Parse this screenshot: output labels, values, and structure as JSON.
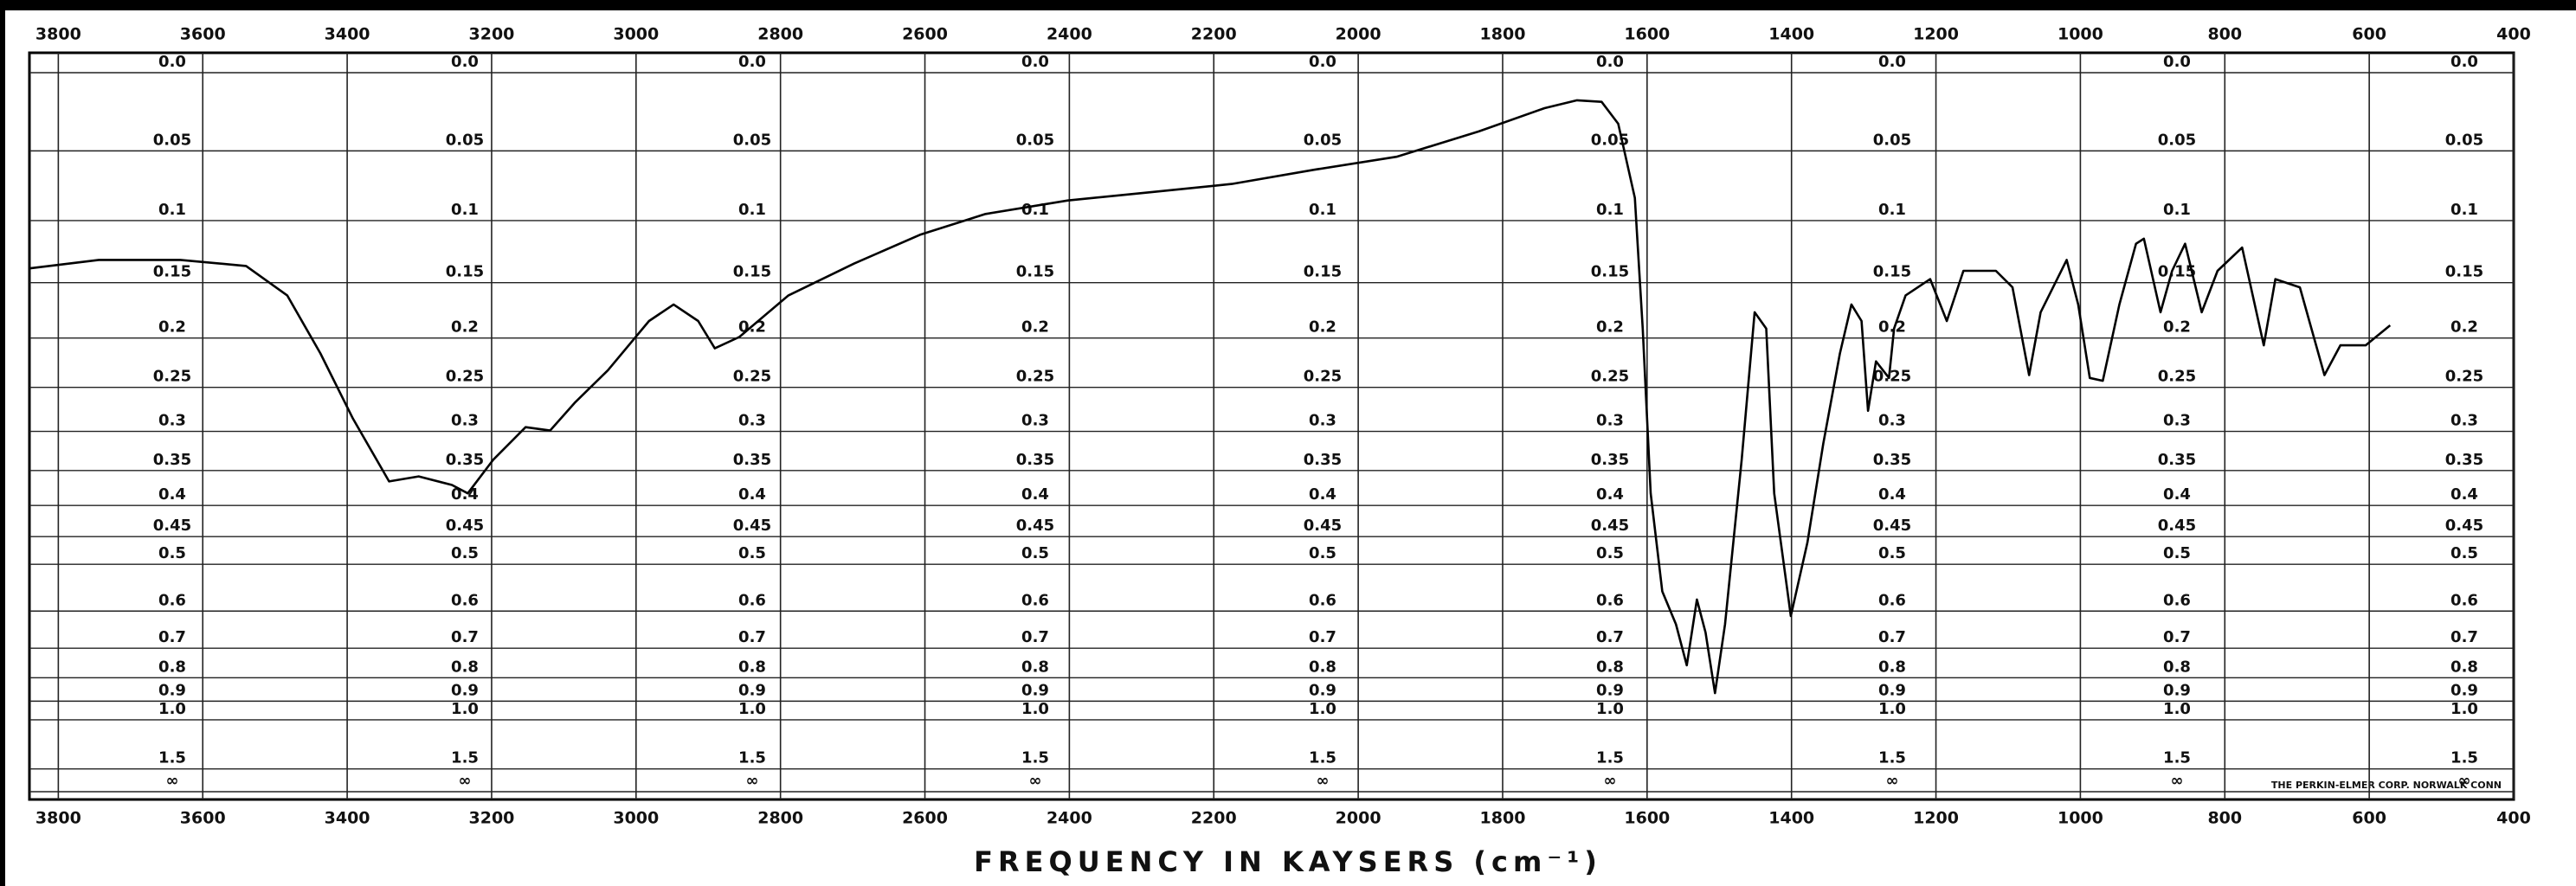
{
  "chart_data": {
    "type": "line",
    "xlabel": "FREQUENCY IN KAYSERS (cm⁻¹)",
    "annotation": "THE PERKIN-ELMER CORP. NORWALK CONN",
    "yscale": "absorbance",
    "grid": true,
    "color": "#000000",
    "xlim": [
      3840,
      400
    ],
    "xticks": [
      3800,
      3600,
      3400,
      3200,
      3000,
      2800,
      2600,
      2400,
      2200,
      2000,
      1800,
      1600,
      1400,
      1200,
      1000,
      800,
      600,
      400
    ],
    "ylim": [
      0,
      null
    ],
    "yticks": [
      {
        "value": 0,
        "label": "0.0"
      },
      0.05,
      0.1,
      0.15,
      0.2,
      0.25,
      0.3,
      0.35,
      0.4,
      0.45,
      0.5,
      0.6,
      0.7,
      0.8,
      0.9,
      {
        "value": 1,
        "label": "1.0"
      },
      1.5,
      {
        "value": null,
        "label": "∞"
      }
    ],
    "x": [
      3840,
      3744,
      3631,
      3540,
      3483,
      3437,
      3392,
      3342,
      3301,
      3255,
      3233,
      3198,
      3153,
      3119,
      3085,
      3039,
      2982,
      2948,
      2914,
      2891,
      2857,
      2789,
      2698,
      2607,
      2516,
      2402,
      2288,
      2175,
      2061,
      1947,
      1833,
      1742,
      1697,
      1663,
      1640,
      1617,
      1606,
      1595,
      1579,
      1560,
      1545,
      1531,
      1519,
      1506,
      1492,
      1469,
      1451,
      1435,
      1424,
      1401,
      1378,
      1356,
      1333,
      1317,
      1303,
      1294,
      1283,
      1265,
      1258,
      1242,
      1208,
      1185,
      1162,
      1117,
      1094,
      1071,
      1055,
      1019,
      1003,
      987,
      969,
      946,
      923,
      912,
      889,
      873,
      855,
      832,
      810,
      776,
      746,
      730,
      696,
      662,
      640,
      605,
      571
    ],
    "values": [
      0.138,
      0.131,
      0.131,
      0.136,
      0.161,
      0.215,
      0.285,
      0.365,
      0.358,
      0.37,
      0.382,
      0.336,
      0.295,
      0.299,
      0.267,
      0.232,
      0.184,
      0.169,
      0.184,
      0.21,
      0.199,
      0.161,
      0.134,
      0.111,
      0.095,
      0.085,
      0.079,
      0.073,
      0.063,
      0.054,
      0.037,
      0.022,
      0.017,
      0.018,
      0.032,
      0.083,
      0.191,
      0.382,
      0.555,
      0.633,
      0.755,
      0.573,
      0.655,
      0.863,
      0.633,
      0.336,
      0.176,
      0.191,
      0.382,
      0.612,
      0.46,
      0.315,
      0.215,
      0.169,
      0.184,
      0.276,
      0.223,
      0.24,
      0.191,
      0.161,
      0.147,
      0.184,
      0.14,
      0.14,
      0.154,
      0.237,
      0.176,
      0.131,
      0.169,
      0.24,
      0.243,
      0.169,
      0.118,
      0.114,
      0.176,
      0.14,
      0.118,
      0.176,
      0.14,
      0.121,
      0.207,
      0.147,
      0.154,
      0.237,
      0.207,
      0.207,
      0.188
    ]
  }
}
